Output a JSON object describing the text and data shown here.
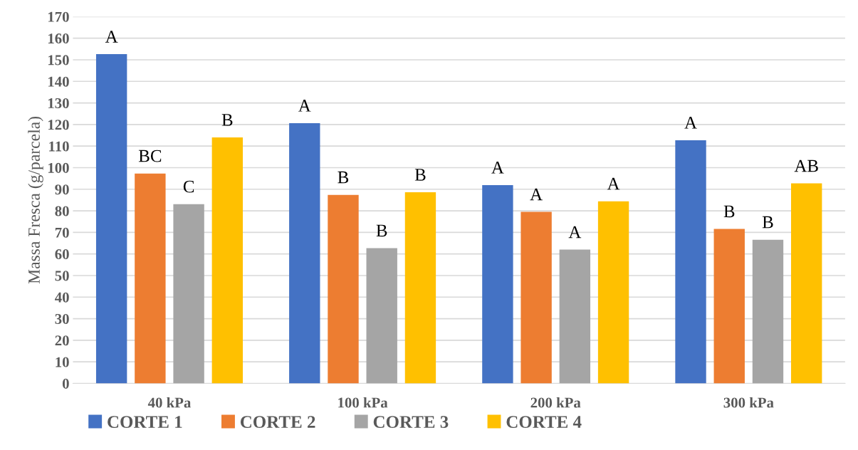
{
  "chart_data": {
    "type": "bar",
    "ylabel": "Massa Fresca (g/parcela)",
    "categories": [
      "40 kPa",
      "100 kPa",
      "200 kPa",
      "300 kPa"
    ],
    "series": [
      {
        "name": "CORTE 1",
        "color": "#4472c4",
        "values": [
          152.6,
          120.6,
          91.9,
          112.7
        ],
        "value_labels": [
          "A",
          "A",
          "A",
          "A"
        ]
      },
      {
        "name": "CORTE 2",
        "color": "#ed7d31",
        "values": [
          97.3,
          87.4,
          79.5,
          71.6
        ],
        "value_labels": [
          "BC",
          "B",
          "A",
          "B"
        ]
      },
      {
        "name": "CORTE 3",
        "color": "#a5a5a5",
        "values": [
          83.1,
          62.7,
          62.0,
          66.6
        ],
        "value_labels": [
          "C",
          "B",
          "A",
          "B"
        ]
      },
      {
        "name": "CORTE 4",
        "color": "#ffc000",
        "values": [
          114.0,
          88.6,
          84.4,
          92.7
        ],
        "value_labels": [
          "B",
          "B",
          "A",
          "AB"
        ]
      }
    ],
    "ylim": [
      0,
      170
    ],
    "yticks": [
      0,
      10,
      20,
      30,
      40,
      50,
      60,
      70,
      80,
      90,
      100,
      110,
      120,
      130,
      140,
      150,
      160,
      170
    ],
    "grid": "y",
    "legend": "bottom"
  }
}
